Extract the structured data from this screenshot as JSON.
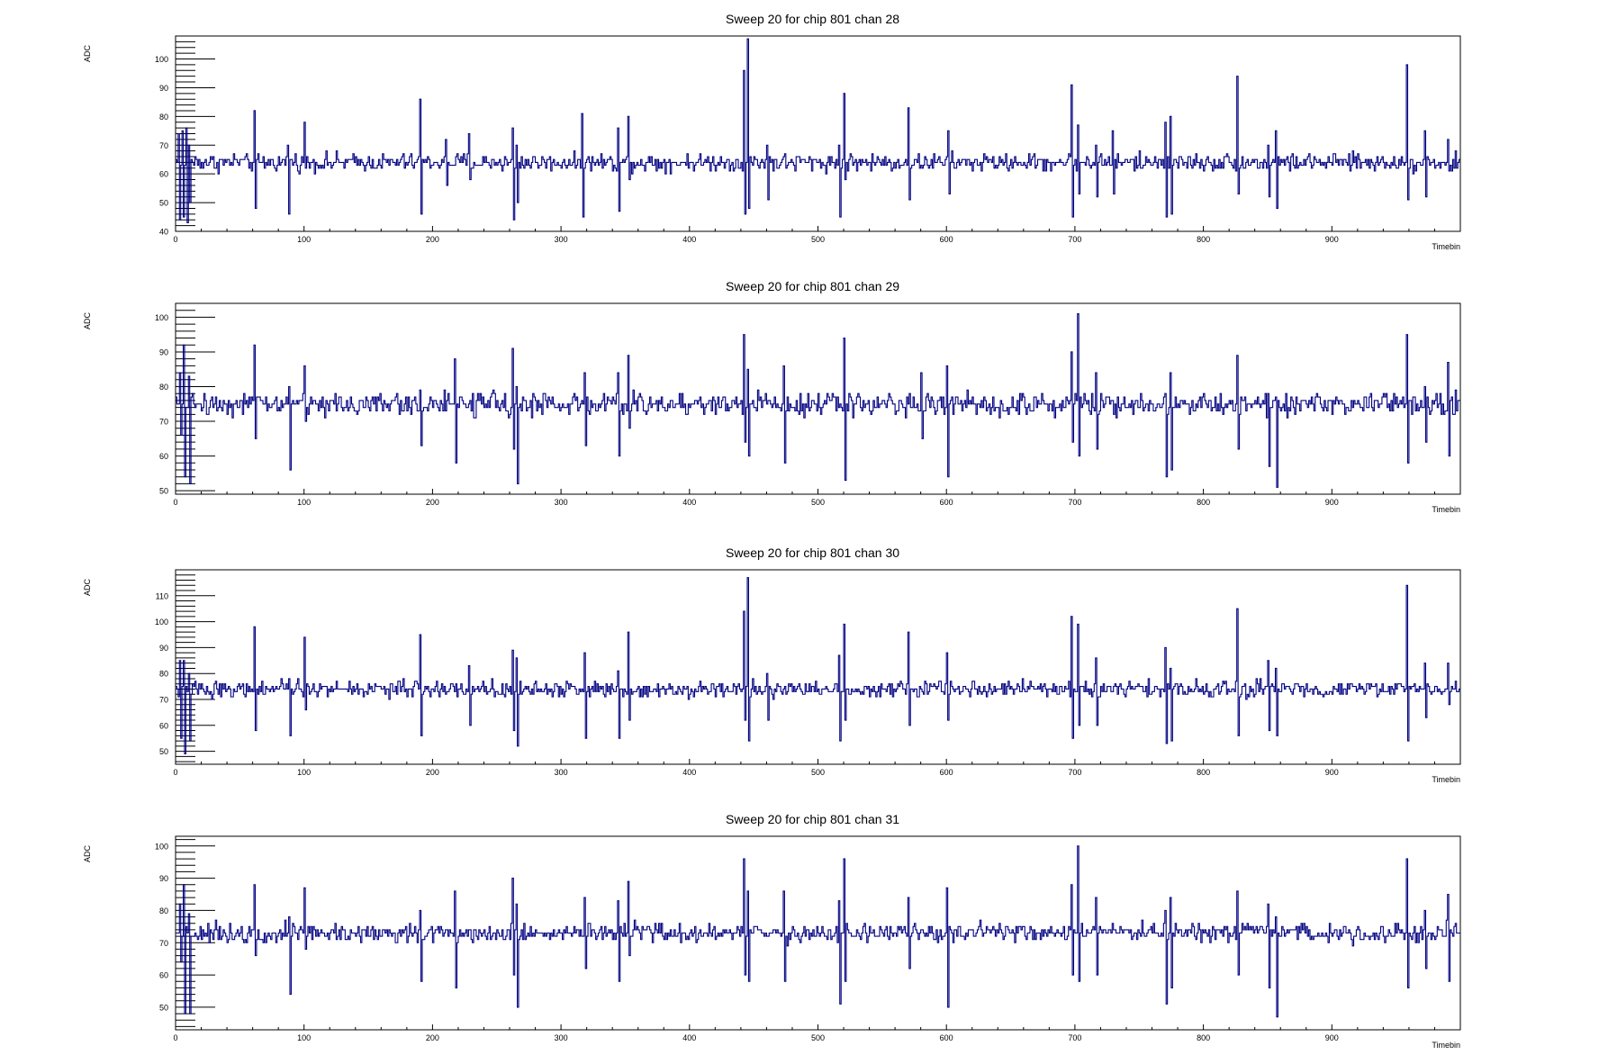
{
  "colors": {
    "trace": "#000080",
    "axis": "#000000",
    "background": "#ffffff"
  },
  "chart_data": [
    {
      "type": "line",
      "title": "Sweep 20 for chip 801 chan 28",
      "xlabel": "Timebin",
      "ylabel": "ADC",
      "xlim": [
        0,
        1000
      ],
      "ylim": [
        40,
        108
      ],
      "xticks": [
        0,
        100,
        200,
        300,
        400,
        500,
        600,
        700,
        800,
        900
      ],
      "yticks": [
        40,
        50,
        60,
        70,
        80,
        90,
        100
      ],
      "baseline": 64,
      "noise": 1.5,
      "spikes": [
        [
          2,
          74,
          44
        ],
        [
          5,
          75,
          45
        ],
        [
          8,
          76,
          43
        ],
        [
          10,
          70,
          50
        ],
        [
          61,
          82,
          48
        ],
        [
          87,
          70,
          46
        ],
        [
          100,
          78,
          62
        ],
        [
          190,
          86,
          46
        ],
        [
          210,
          72,
          56
        ],
        [
          228,
          74,
          58
        ],
        [
          262,
          76,
          44
        ],
        [
          265,
          70,
          50
        ],
        [
          316,
          81,
          45
        ],
        [
          344,
          76,
          47
        ],
        [
          352,
          80,
          58
        ],
        [
          442,
          96,
          46
        ],
        [
          445,
          107,
          48
        ],
        [
          460,
          70,
          51
        ],
        [
          516,
          70,
          45
        ],
        [
          520,
          88,
          58
        ],
        [
          570,
          83,
          51
        ],
        [
          601,
          75,
          53
        ],
        [
          697,
          91,
          45
        ],
        [
          702,
          77,
          53
        ],
        [
          716,
          70,
          52
        ],
        [
          729,
          75,
          53
        ],
        [
          770,
          78,
          45
        ],
        [
          774,
          80,
          46
        ],
        [
          826,
          94,
          53
        ],
        [
          850,
          70,
          52
        ],
        [
          856,
          75,
          48
        ],
        [
          958,
          98,
          51
        ],
        [
          972,
          75,
          52
        ],
        [
          990,
          72,
          61
        ]
      ]
    },
    {
      "type": "line",
      "title": "Sweep 20 for chip 801 chan 29",
      "xlabel": "Timebin",
      "ylabel": "ADC",
      "xlim": [
        0,
        1000
      ],
      "ylim": [
        49,
        104
      ],
      "xticks": [
        0,
        100,
        200,
        300,
        400,
        500,
        600,
        700,
        800,
        900
      ],
      "yticks": [
        50,
        60,
        70,
        80,
        90,
        100
      ],
      "baseline": 75,
      "noise": 1.6,
      "spikes": [
        [
          3,
          84,
          66
        ],
        [
          6,
          92,
          54
        ],
        [
          10,
          83,
          52
        ],
        [
          61,
          92,
          65
        ],
        [
          88,
          80,
          56
        ],
        [
          100,
          86,
          70
        ],
        [
          190,
          79,
          63
        ],
        [
          217,
          88,
          58
        ],
        [
          262,
          91,
          62
        ],
        [
          265,
          80,
          52
        ],
        [
          318,
          84,
          63
        ],
        [
          344,
          84,
          60
        ],
        [
          352,
          89,
          68
        ],
        [
          442,
          95,
          64
        ],
        [
          445,
          85,
          60
        ],
        [
          473,
          86,
          58
        ],
        [
          520,
          94,
          53
        ],
        [
          580,
          84,
          65
        ],
        [
          600,
          86,
          54
        ],
        [
          697,
          90,
          64
        ],
        [
          702,
          101,
          60
        ],
        [
          716,
          84,
          62
        ],
        [
          770,
          78,
          54
        ],
        [
          774,
          84,
          56
        ],
        [
          826,
          89,
          62
        ],
        [
          850,
          78,
          57
        ],
        [
          856,
          77,
          51
        ],
        [
          958,
          95,
          58
        ],
        [
          972,
          80,
          64
        ],
        [
          990,
          87,
          60
        ]
      ]
    },
    {
      "type": "line",
      "title": "Sweep 20 for chip 801 chan 30",
      "xlabel": "Timebin",
      "ylabel": "ADC",
      "xlim": [
        0,
        1000
      ],
      "ylim": [
        45,
        120
      ],
      "xticks": [
        0,
        100,
        200,
        300,
        400,
        500,
        600,
        700,
        800,
        900
      ],
      "yticks": [
        50,
        60,
        70,
        80,
        90,
        100,
        110
      ],
      "baseline": 74,
      "noise": 1.5,
      "spikes": [
        [
          3,
          85,
          55
        ],
        [
          6,
          85,
          49
        ],
        [
          10,
          80,
          54
        ],
        [
          61,
          98,
          58
        ],
        [
          88,
          78,
          56
        ],
        [
          100,
          94,
          66
        ],
        [
          190,
          95,
          56
        ],
        [
          228,
          83,
          60
        ],
        [
          262,
          89,
          58
        ],
        [
          265,
          86,
          52
        ],
        [
          318,
          88,
          55
        ],
        [
          344,
          81,
          55
        ],
        [
          352,
          96,
          62
        ],
        [
          442,
          104,
          62
        ],
        [
          445,
          117,
          54
        ],
        [
          460,
          80,
          62
        ],
        [
          516,
          87,
          54
        ],
        [
          520,
          99,
          62
        ],
        [
          570,
          96,
          60
        ],
        [
          600,
          88,
          62
        ],
        [
          697,
          102,
          55
        ],
        [
          702,
          99,
          60
        ],
        [
          716,
          86,
          60
        ],
        [
          770,
          90,
          53
        ],
        [
          774,
          82,
          54
        ],
        [
          826,
          105,
          56
        ],
        [
          850,
          85,
          58
        ],
        [
          856,
          82,
          56
        ],
        [
          958,
          114,
          54
        ],
        [
          972,
          84,
          63
        ],
        [
          990,
          84,
          68
        ]
      ]
    },
    {
      "type": "line",
      "title": "Sweep 20 for chip 801 chan 31",
      "xlabel": "Timebin",
      "ylabel": "ADC",
      "xlim": [
        0,
        1000
      ],
      "ylim": [
        43,
        103
      ],
      "xticks": [
        0,
        100,
        200,
        300,
        400,
        500,
        600,
        700,
        800,
        900
      ],
      "yticks": [
        50,
        60,
        70,
        80,
        90,
        100
      ],
      "baseline": 73,
      "noise": 1.4,
      "spikes": [
        [
          3,
          82,
          64
        ],
        [
          6,
          88,
          48
        ],
        [
          10,
          79,
          48
        ],
        [
          61,
          88,
          66
        ],
        [
          88,
          78,
          54
        ],
        [
          100,
          87,
          68
        ],
        [
          190,
          80,
          58
        ],
        [
          217,
          86,
          56
        ],
        [
          262,
          90,
          60
        ],
        [
          265,
          82,
          50
        ],
        [
          318,
          84,
          62
        ],
        [
          344,
          83,
          58
        ],
        [
          352,
          89,
          66
        ],
        [
          442,
          96,
          60
        ],
        [
          445,
          86,
          58
        ],
        [
          473,
          86,
          58
        ],
        [
          516,
          83,
          51
        ],
        [
          520,
          96,
          58
        ],
        [
          570,
          84,
          62
        ],
        [
          600,
          87,
          50
        ],
        [
          697,
          88,
          60
        ],
        [
          702,
          100,
          58
        ],
        [
          716,
          84,
          60
        ],
        [
          770,
          80,
          51
        ],
        [
          774,
          84,
          56
        ],
        [
          826,
          86,
          60
        ],
        [
          850,
          82,
          56
        ],
        [
          856,
          78,
          47
        ],
        [
          958,
          96,
          56
        ],
        [
          972,
          80,
          62
        ],
        [
          990,
          85,
          58
        ]
      ]
    }
  ]
}
